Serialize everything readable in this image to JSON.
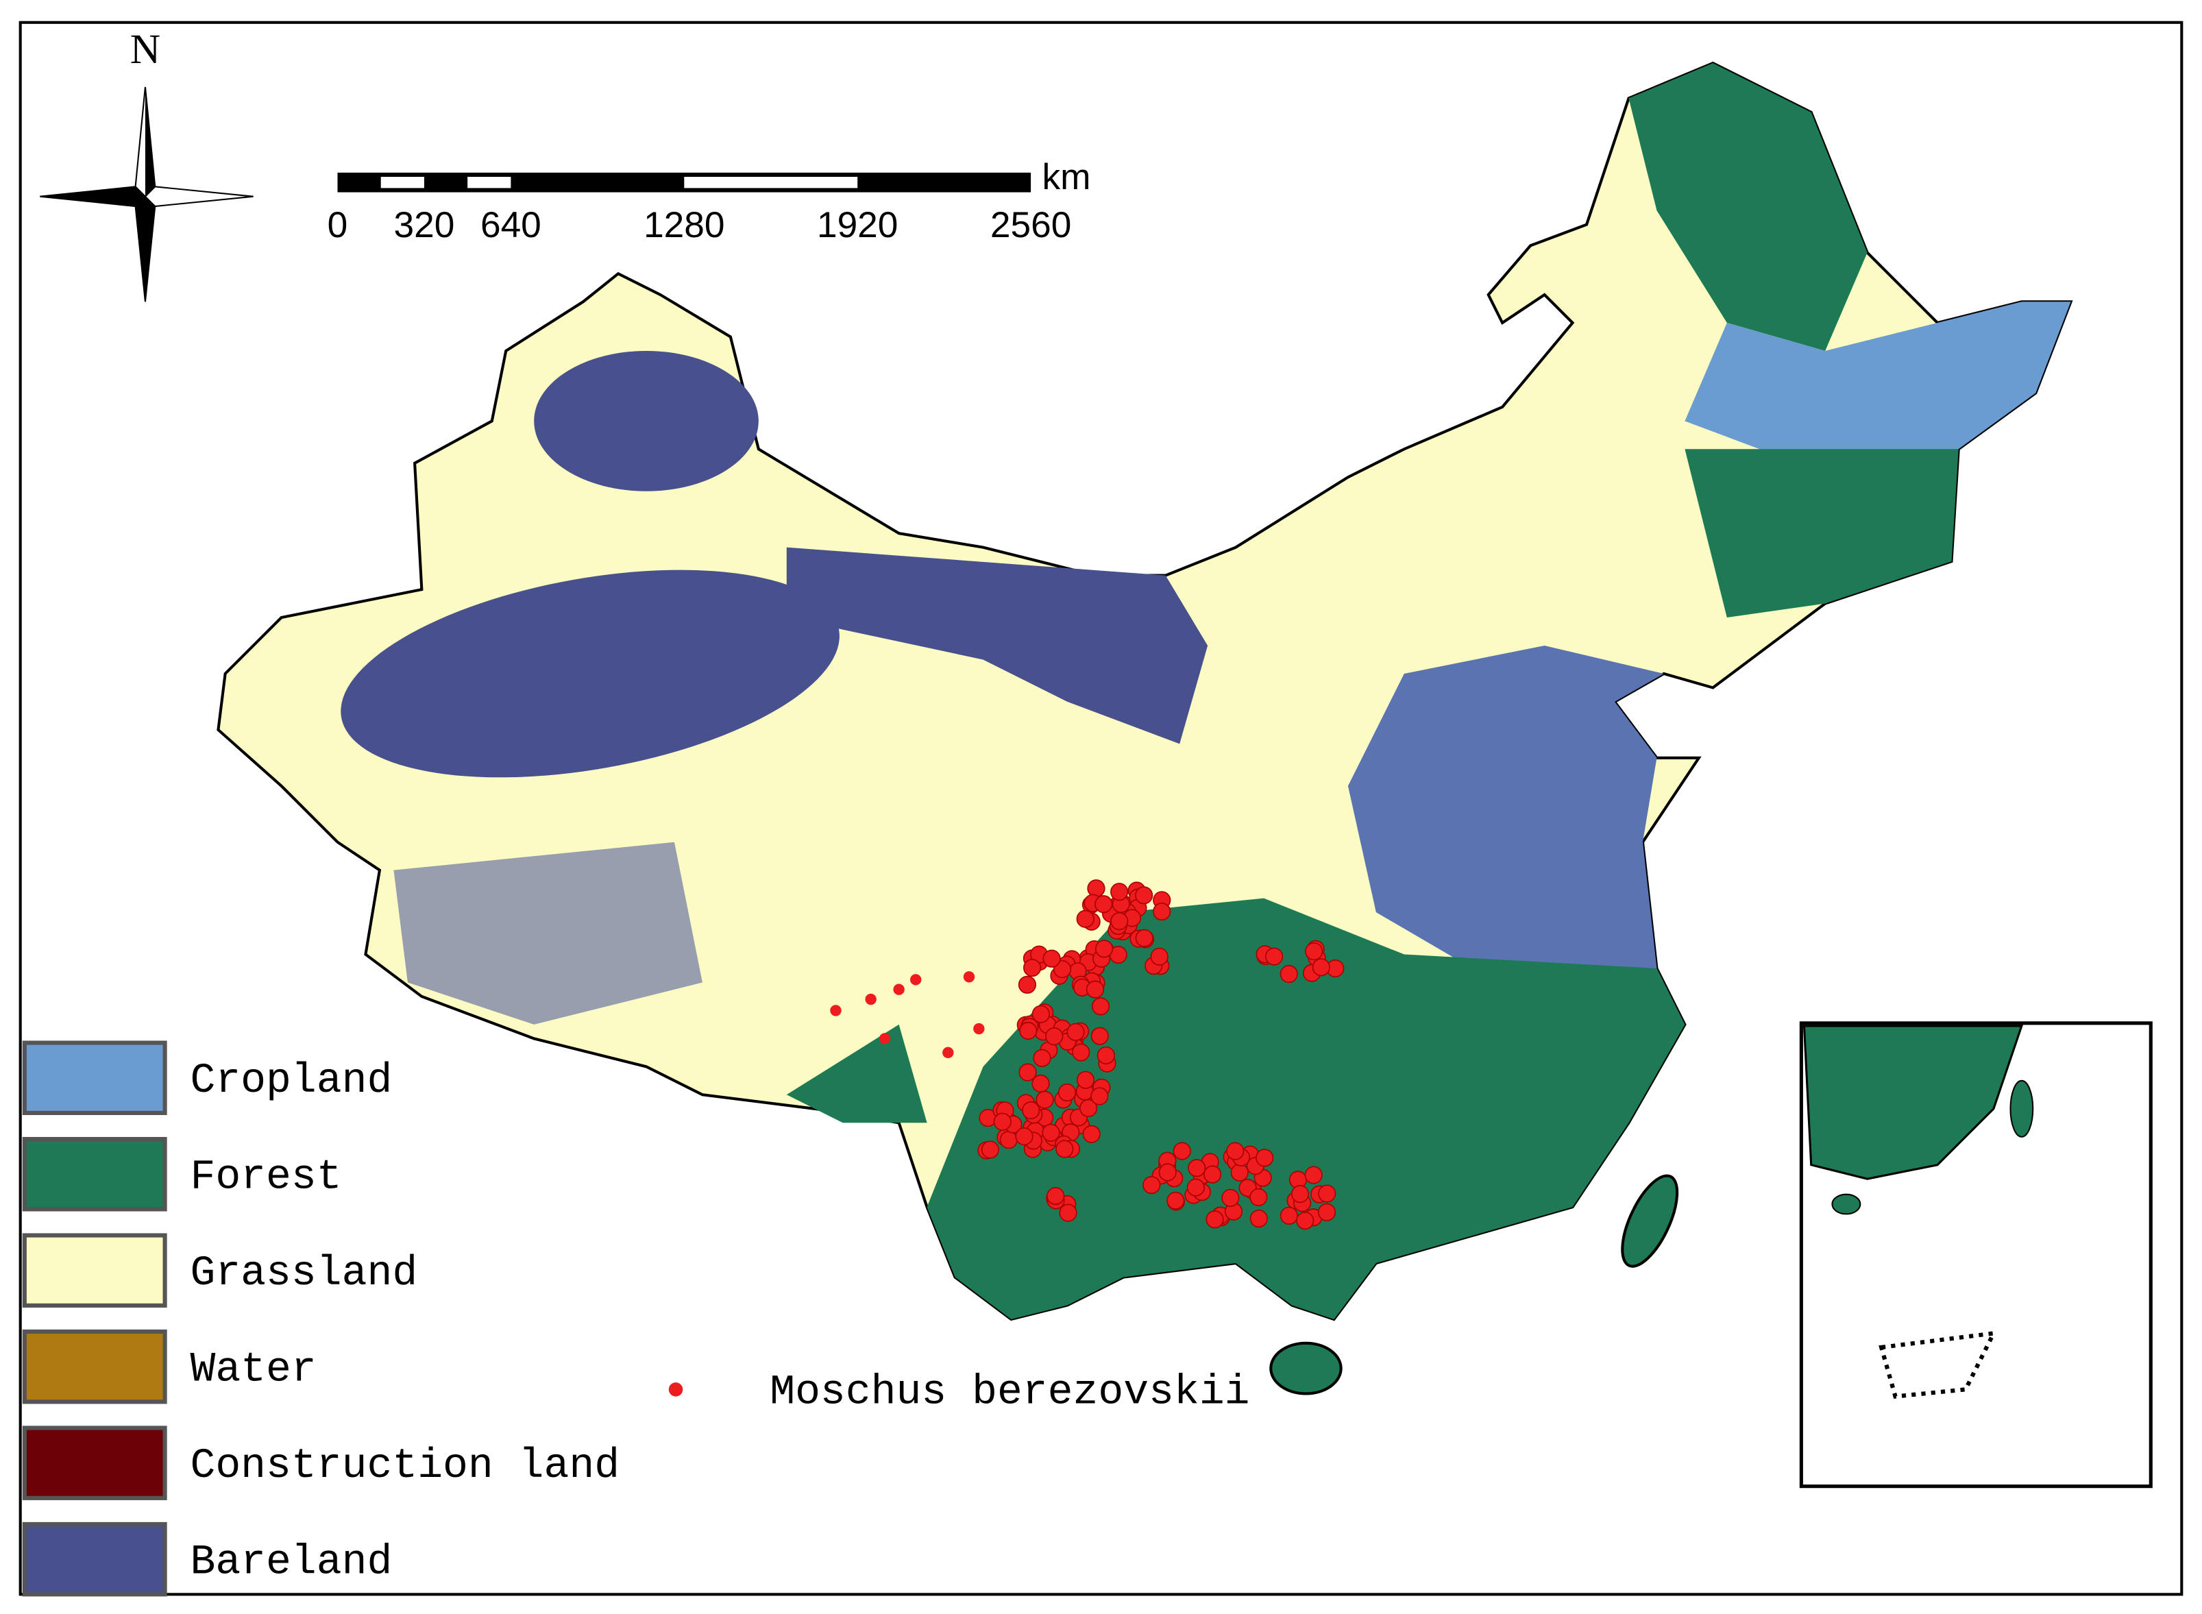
{
  "compass": {
    "label": "N"
  },
  "scale_bar": {
    "unit": "km",
    "ticks": [
      0,
      320,
      640,
      1280,
      1920,
      2560
    ]
  },
  "legend": {
    "items": [
      {
        "label": "Cropland",
        "color": "#6a9bd1"
      },
      {
        "label": "Forest",
        "color": "#1d7a55"
      },
      {
        "label": "Grassland",
        "color": "#fbfbc3"
      },
      {
        "label": "Water",
        "color": "#b07a12"
      },
      {
        "label": "Construction land",
        "color": "#6b0208"
      },
      {
        "label": "Bareland",
        "color": "#48508e"
      }
    ]
  },
  "occurrence": {
    "label": "Moschus berezovskii",
    "color": "#ee1c1f"
  }
}
